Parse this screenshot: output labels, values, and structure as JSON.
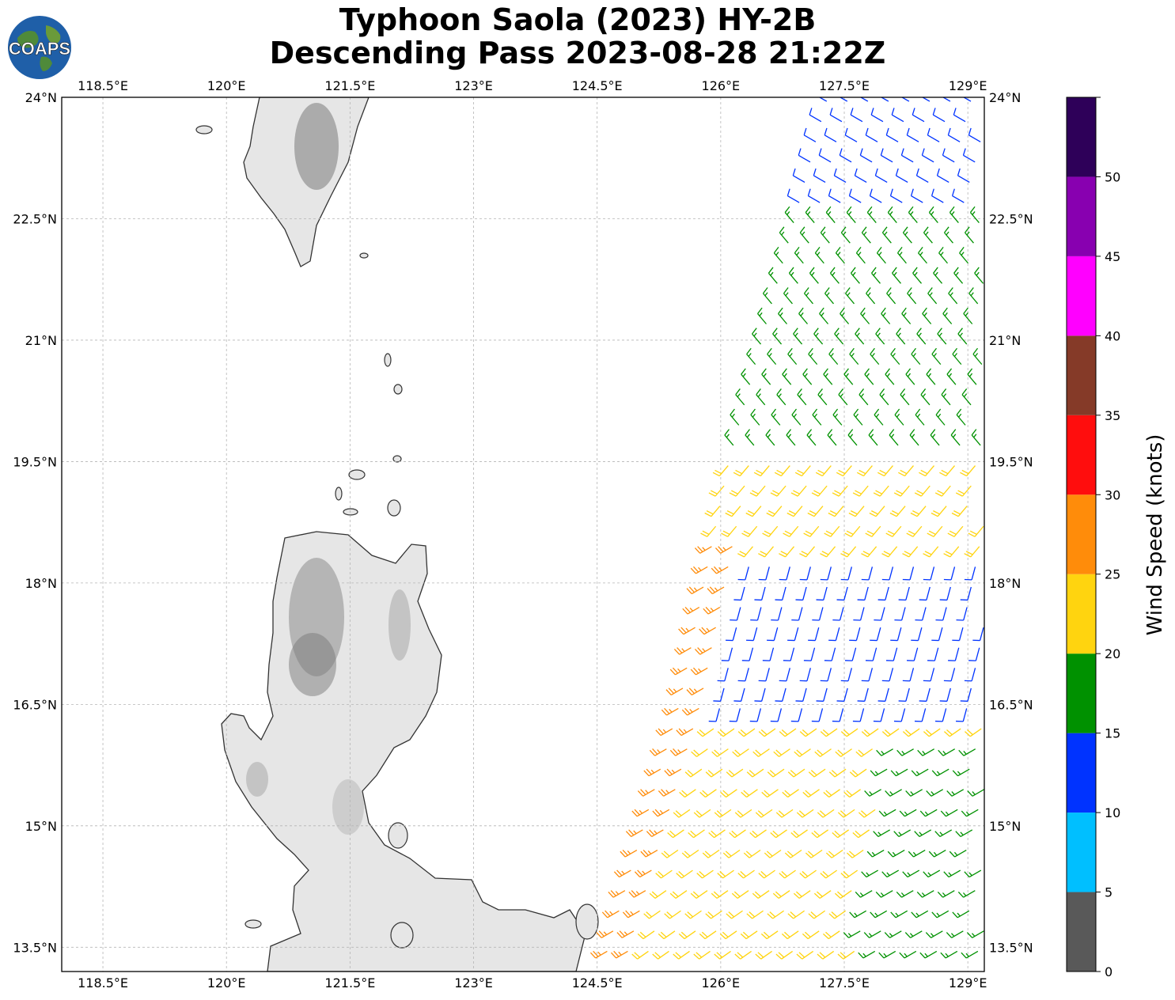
{
  "title": {
    "line1": "Typhoon Saola (2023) HY-2B",
    "line2": "Descending Pass 2023-08-28 21:22Z"
  },
  "logo": {
    "text": "COAPS"
  },
  "map": {
    "lon_range": [
      118.0,
      129.2
    ],
    "lat_range": [
      13.2,
      24.0
    ],
    "lon_ticks": [
      {
        "value": 118.5,
        "label": "118.5°E"
      },
      {
        "value": 120.0,
        "label": "120°E"
      },
      {
        "value": 121.5,
        "label": "121.5°E"
      },
      {
        "value": 123.0,
        "label": "123°E"
      },
      {
        "value": 124.5,
        "label": "124.5°E"
      },
      {
        "value": 126.0,
        "label": "126°E"
      },
      {
        "value": 127.5,
        "label": "127.5°E"
      },
      {
        "value": 129.0,
        "label": "129°E"
      }
    ],
    "lat_ticks": [
      {
        "value": 24.0,
        "label": "24°N"
      },
      {
        "value": 22.5,
        "label": "22.5°N"
      },
      {
        "value": 21.0,
        "label": "21°N"
      },
      {
        "value": 19.5,
        "label": "19.5°N"
      },
      {
        "value": 18.0,
        "label": "18°N"
      },
      {
        "value": 16.5,
        "label": "16.5°N"
      },
      {
        "value": 15.0,
        "label": "15°N"
      },
      {
        "value": 13.5,
        "label": "13.5°N"
      }
    ],
    "grid": true,
    "land_fill": "#e6e6e6",
    "coast_color": "#333333"
  },
  "colorbar": {
    "title": "Wind Speed (knots)",
    "bins": [
      {
        "from": 0,
        "to": 5,
        "color": "#595959"
      },
      {
        "from": 5,
        "to": 10,
        "color": "#00bfff"
      },
      {
        "from": 10,
        "to": 15,
        "color": "#0033ff"
      },
      {
        "from": 15,
        "to": 20,
        "color": "#009100"
      },
      {
        "from": 20,
        "to": 25,
        "color": "#ffd40f"
      },
      {
        "from": 25,
        "to": 30,
        "color": "#ff8c0a"
      },
      {
        "from": 30,
        "to": 35,
        "color": "#ff0d0d"
      },
      {
        "from": 35,
        "to": 40,
        "color": "#853a28"
      },
      {
        "from": 40,
        "to": 45,
        "color": "#ff00ff"
      },
      {
        "from": 45,
        "to": 50,
        "color": "#8800b0"
      },
      {
        "from": 50,
        "to": 55,
        "color": "#2e0059"
      }
    ],
    "tick_labels": [
      "0",
      "5",
      "10",
      "15",
      "20",
      "25",
      "30",
      "35",
      "40",
      "45",
      "50"
    ]
  },
  "chart_data": {
    "type": "wind-barb-map",
    "swath": {
      "description_lon_at_lat": [
        [
          13.2,
          124.55
        ],
        [
          16.5,
          125.5
        ],
        [
          19.5,
          126.1
        ],
        [
          24.0,
          127.3
        ]
      ],
      "east_lon": 129.2
    },
    "wind_regions": [
      {
        "lat_min": 22.7,
        "lat_max": 24.0,
        "speed_kn": 13,
        "color": "#0033ff",
        "dir_from_deg": 300
      },
      {
        "lat_min": 19.5,
        "lat_max": 22.7,
        "speed_kn": 17,
        "color": "#009100",
        "dir_from_deg": 320
      },
      {
        "lat_min": 18.3,
        "lat_max": 19.5,
        "speed_kn": 22,
        "color": "#ffd40f",
        "dir_from_deg": 220
      },
      {
        "lat_min": 16.3,
        "lat_max": 18.3,
        "speed_kn": 13,
        "color": "#0033ff",
        "dir_from_deg": 195
      },
      {
        "lat_min": 13.2,
        "lat_max": 16.3,
        "speed_kn": 22,
        "color": "#ffd40f",
        "dir_from_deg": 235
      },
      {
        "lat_min": 13.2,
        "lat_max": 18.5,
        "speed_kn": 27,
        "color": "#ff8c0a",
        "dir_from_deg": 240,
        "zone": "west-edge"
      },
      {
        "lat_min": 13.2,
        "lat_max": 16.0,
        "speed_kn": 17,
        "color": "#009100",
        "dir_from_deg": 240,
        "zone": "east"
      }
    ]
  }
}
